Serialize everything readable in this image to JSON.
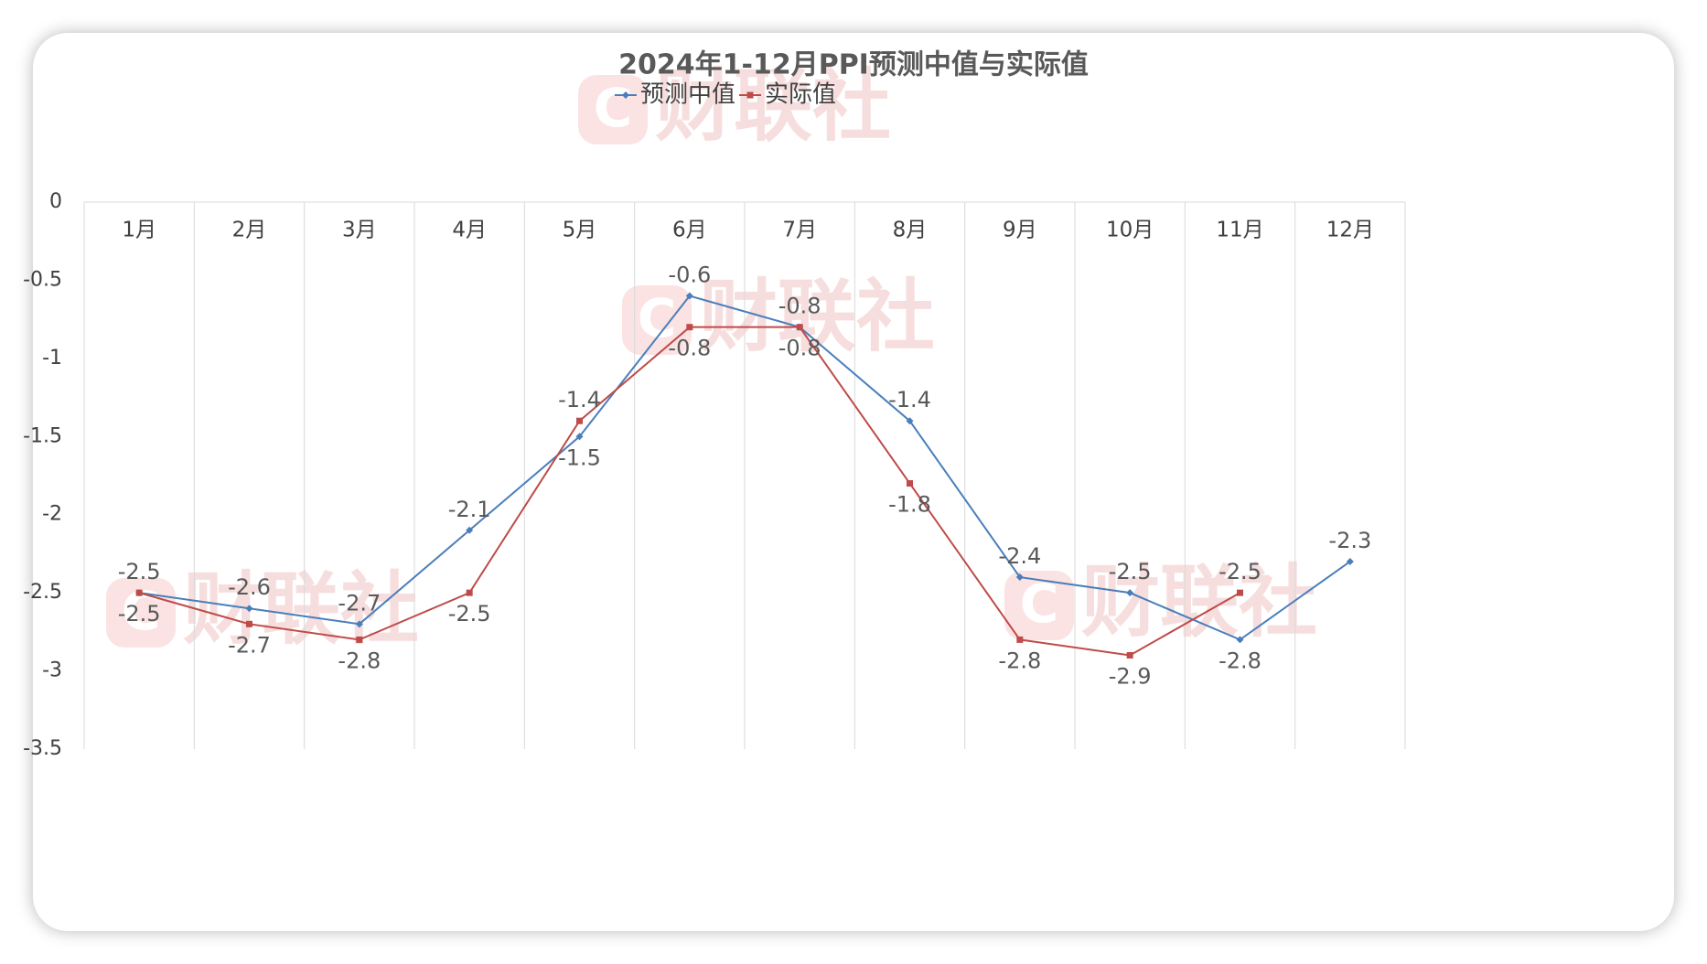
{
  "chart_data": {
    "type": "line",
    "title": "2024年1-12月PPI预测中值与实际值",
    "categories": [
      "1月",
      "2月",
      "3月",
      "4月",
      "5月",
      "6月",
      "7月",
      "8月",
      "9月",
      "10月",
      "11月",
      "12月"
    ],
    "series": [
      {
        "name": "预测中值",
        "color": "#4a7ebb",
        "marker": "diamond",
        "values": [
          -2.5,
          -2.6,
          -2.7,
          -2.1,
          -1.5,
          -0.6,
          -0.8,
          -1.4,
          -2.4,
          -2.5,
          -2.8,
          -2.3
        ]
      },
      {
        "name": "实际值",
        "color": "#be4b48",
        "marker": "square",
        "values": [
          -2.5,
          -2.7,
          -2.8,
          -2.5,
          -1.4,
          -0.8,
          -0.8,
          -1.8,
          -2.8,
          -2.9,
          -2.5,
          null
        ]
      }
    ],
    "y_ticks": [
      "0",
      "-0.5",
      "-1",
      "-1.5",
      "-2",
      "-2.5",
      "-3",
      "-3.5"
    ],
    "ylim": [
      -3.5,
      0
    ],
    "grid": "vertical category separators",
    "legend": "top-center",
    "x_axis_position": "top"
  },
  "watermark": {
    "text": "财联社",
    "mark": "C"
  }
}
